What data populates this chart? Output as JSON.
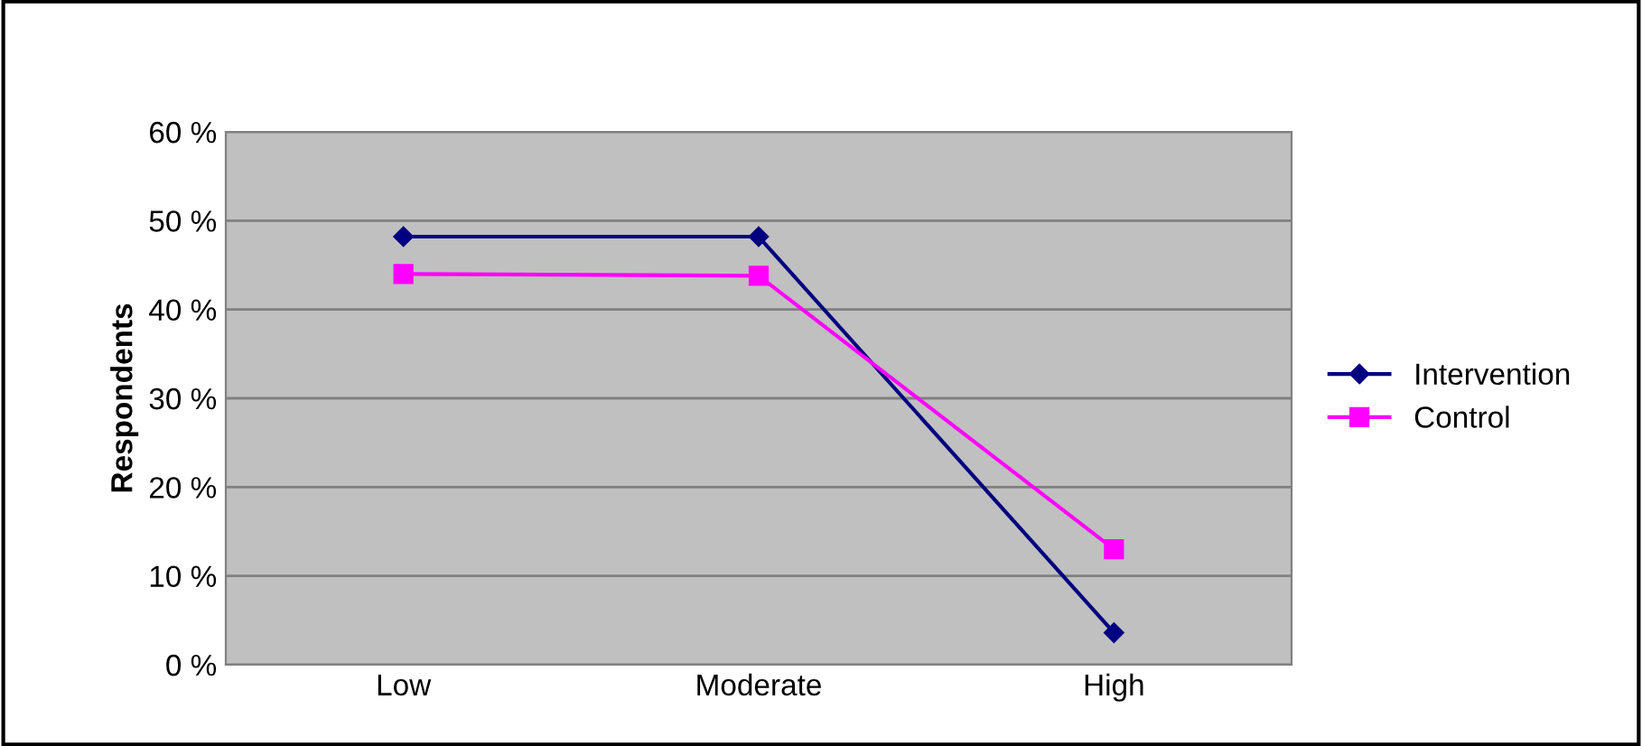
{
  "chart_data": {
    "type": "line",
    "ylabel": "Respondents",
    "categories": [
      "Low",
      "Moderate",
      "High"
    ],
    "series": [
      {
        "name": "Intervention",
        "color": "#000080",
        "marker": "diamond",
        "values": [
          48.2,
          48.2,
          3.6
        ]
      },
      {
        "name": "Control",
        "color": "#ff00ff",
        "marker": "square",
        "values": [
          44,
          43.8,
          13
        ]
      }
    ],
    "ylim": [
      0,
      60
    ],
    "yticks": [
      {
        "value": 0,
        "label": "0 %"
      },
      {
        "value": 10,
        "label": "10 %"
      },
      {
        "value": 20,
        "label": "20 %"
      },
      {
        "value": 30,
        "label": "30 %"
      },
      {
        "value": 40,
        "label": "40 %"
      },
      {
        "value": 50,
        "label": "50 %"
      },
      {
        "value": 60,
        "label": "60 %"
      }
    ],
    "grid": "y",
    "legend": "right"
  }
}
